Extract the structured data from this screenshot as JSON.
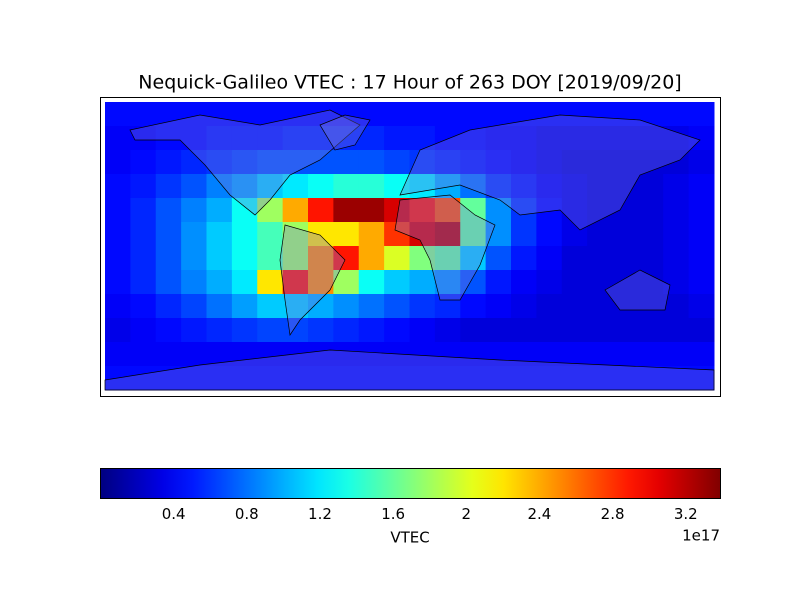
{
  "chart_data": {
    "type": "heatmap",
    "title": "Nequick-Galileo VTEC : 17 Hour of 263 DOY [2019/09/20]",
    "z": [
      [
        0.45,
        0.45,
        0.45,
        0.45,
        0.45,
        0.45,
        0.45,
        0.45,
        0.45,
        0.45,
        0.45,
        0.45,
        0.45,
        0.45,
        0.45,
        0.45,
        0.45,
        0.45,
        0.45,
        0.45,
        0.45,
        0.45,
        0.45,
        0.45
      ],
      [
        0.4,
        0.4,
        0.45,
        0.45,
        0.5,
        0.5,
        0.5,
        0.55,
        0.55,
        0.55,
        0.55,
        0.5,
        0.5,
        0.45,
        0.45,
        0.4,
        0.4,
        0.35,
        0.35,
        0.35,
        0.35,
        0.35,
        0.35,
        0.4
      ],
      [
        0.4,
        0.45,
        0.5,
        0.55,
        0.6,
        0.65,
        0.7,
        0.7,
        0.7,
        0.7,
        0.7,
        0.65,
        0.6,
        0.55,
        0.5,
        0.45,
        0.4,
        0.35,
        0.3,
        0.3,
        0.3,
        0.3,
        0.3,
        0.35
      ],
      [
        0.45,
        0.5,
        0.6,
        0.7,
        0.85,
        0.95,
        1.1,
        1.2,
        1.3,
        1.4,
        1.4,
        1.3,
        1.2,
        1.0,
        0.8,
        0.6,
        0.5,
        0.4,
        0.35,
        0.3,
        0.3,
        0.3,
        0.35,
        0.4
      ],
      [
        0.45,
        0.55,
        0.7,
        0.85,
        1.0,
        1.3,
        1.8,
        2.4,
        2.9,
        3.3,
        3.3,
        3.1,
        2.9,
        2.7,
        1.6,
        0.9,
        0.6,
        0.45,
        0.35,
        0.3,
        0.3,
        0.3,
        0.35,
        0.4
      ],
      [
        0.45,
        0.55,
        0.7,
        0.9,
        1.1,
        1.3,
        1.5,
        1.8,
        2.2,
        2.2,
        2.4,
        2.8,
        3.1,
        3.2,
        1.6,
        0.9,
        0.6,
        0.45,
        0.35,
        0.3,
        0.3,
        0.3,
        0.35,
        0.4
      ],
      [
        0.45,
        0.55,
        0.7,
        0.9,
        1.1,
        1.3,
        1.5,
        1.8,
        2.5,
        2.9,
        2.4,
        2.0,
        1.7,
        1.6,
        1.1,
        0.7,
        0.5,
        0.4,
        0.3,
        0.3,
        0.3,
        0.3,
        0.35,
        0.4
      ],
      [
        0.45,
        0.55,
        0.7,
        0.85,
        1.0,
        1.2,
        2.2,
        2.9,
        2.5,
        1.8,
        1.3,
        1.1,
        1.0,
        0.9,
        0.7,
        0.5,
        0.4,
        0.35,
        0.3,
        0.3,
        0.3,
        0.3,
        0.35,
        0.4
      ],
      [
        0.4,
        0.45,
        0.55,
        0.65,
        0.8,
        0.95,
        1.1,
        1.1,
        1.0,
        0.9,
        0.8,
        0.7,
        0.6,
        0.55,
        0.45,
        0.4,
        0.35,
        0.3,
        0.3,
        0.3,
        0.3,
        0.3,
        0.3,
        0.35
      ],
      [
        0.35,
        0.4,
        0.45,
        0.5,
        0.55,
        0.6,
        0.65,
        0.65,
        0.6,
        0.55,
        0.5,
        0.45,
        0.4,
        0.35,
        0.3,
        0.3,
        0.3,
        0.3,
        0.3,
        0.3,
        0.3,
        0.3,
        0.3,
        0.3
      ],
      [
        0.4,
        0.4,
        0.4,
        0.4,
        0.4,
        0.4,
        0.4,
        0.4,
        0.4,
        0.4,
        0.4,
        0.4,
        0.4,
        0.4,
        0.4,
        0.4,
        0.4,
        0.4,
        0.4,
        0.4,
        0.4,
        0.4,
        0.4,
        0.4
      ],
      [
        0.45,
        0.45,
        0.45,
        0.45,
        0.45,
        0.45,
        0.45,
        0.45,
        0.45,
        0.45,
        0.45,
        0.45,
        0.45,
        0.45,
        0.45,
        0.45,
        0.45,
        0.45,
        0.45,
        0.45,
        0.45,
        0.45,
        0.45,
        0.45
      ]
    ],
    "colormap": "jet",
    "colorbar_label": "VTEC",
    "colorbar_offset": "1e17",
    "clim": [
      0,
      3.39
    ],
    "cticks": [
      0.4,
      0.8,
      1.2,
      1.6,
      2.0,
      2.4,
      2.8,
      3.2
    ]
  }
}
